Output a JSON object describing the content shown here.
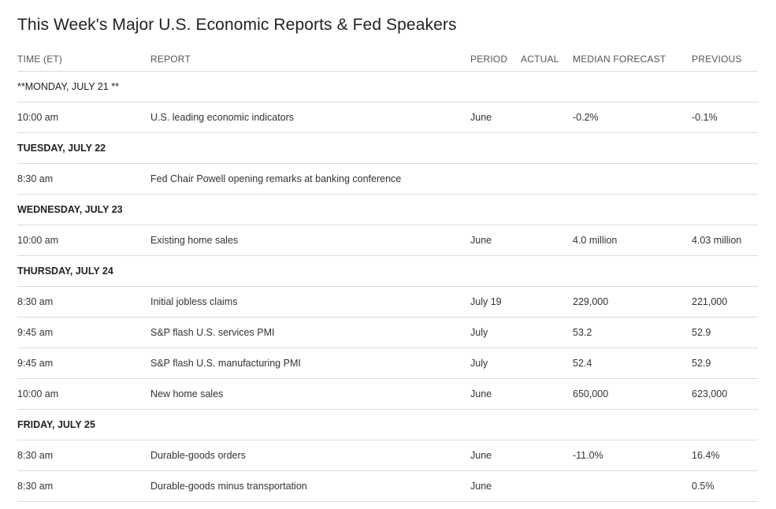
{
  "title": "This Week's Major U.S. Economic Reports & Fed Speakers",
  "columns": {
    "time": "TIME (ET)",
    "report": "REPORT",
    "period": "PERIOD",
    "actual": "ACTUAL",
    "median": "MEDIAN FORECAST",
    "previous": "PREVIOUS"
  },
  "days": [
    {
      "label": "**MONDAY, JULY 21 **",
      "bold": false,
      "rows": [
        {
          "time": "10:00 am",
          "report": "U.S. leading economic indicators",
          "period": "June",
          "actual": "",
          "median": "-0.2%",
          "previous": "-0.1%"
        }
      ]
    },
    {
      "label": "TUESDAY, JULY 22",
      "bold": true,
      "rows": [
        {
          "time": "8:30 am",
          "report": "Fed Chair Powell opening remarks at banking conference",
          "period": "",
          "actual": "",
          "median": "",
          "previous": ""
        }
      ]
    },
    {
      "label": "WEDNESDAY, JULY 23",
      "bold": true,
      "rows": [
        {
          "time": "10:00 am",
          "report": "Existing home sales",
          "period": "June",
          "actual": "",
          "median": "4.0 million",
          "previous": "4.03 million"
        }
      ]
    },
    {
      "label": "THURSDAY, JULY 24",
      "bold": true,
      "rows": [
        {
          "time": "8:30 am",
          "report": "Initial jobless claims",
          "period": "July 19",
          "actual": "",
          "median": "229,000",
          "previous": "221,000"
        },
        {
          "time": "9:45 am",
          "report": "S&P flash U.S. services PMI",
          "period": "July",
          "actual": "",
          "median": "53.2",
          "previous": "52.9"
        },
        {
          "time": "9:45 am",
          "report": "S&P flash U.S. manufacturing PMI",
          "period": "July",
          "actual": "",
          "median": "52.4",
          "previous": "52.9"
        },
        {
          "time": "10:00 am",
          "report": "New home sales",
          "period": "June",
          "actual": "",
          "median": "650,000",
          "previous": "623,000"
        }
      ]
    },
    {
      "label": "FRIDAY, JULY 25",
      "bold": true,
      "rows": [
        {
          "time": "8:30 am",
          "report": "Durable-goods orders",
          "period": "June",
          "actual": "",
          "median": "-11.0%",
          "previous": "16.4%"
        },
        {
          "time": "8:30 am",
          "report": "Durable-goods minus transportation",
          "period": "June",
          "actual": "",
          "median": "",
          "previous": "0.5%"
        }
      ]
    }
  ]
}
